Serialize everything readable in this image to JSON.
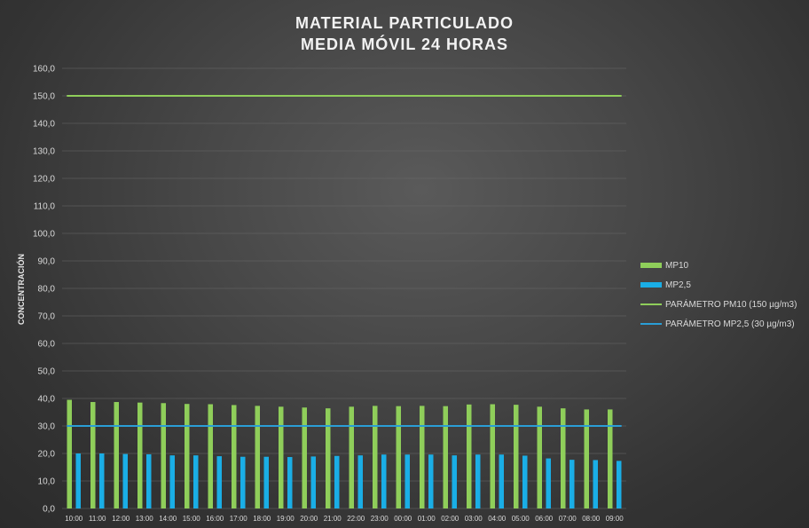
{
  "chart_data": {
    "type": "bar",
    "title": [
      "MATERIAL PARTICULADO",
      "MEDIA MÓVIL 24 HORAS"
    ],
    "ylabel": "CONCENTRACIÓN",
    "xlabel": "",
    "ylim": [
      0,
      160
    ],
    "y_ticks": [
      "0,0",
      "10,0",
      "20,0",
      "30,0",
      "40,0",
      "50,0",
      "60,0",
      "70,0",
      "80,0",
      "90,0",
      "100,0",
      "110,0",
      "120,0",
      "130,0",
      "140,0",
      "150,0",
      "160,0"
    ],
    "grid": true,
    "legend_position": "right",
    "categories": [
      "10:00",
      "11:00",
      "12:00",
      "13:00",
      "14:00",
      "15:00",
      "16:00",
      "17:00",
      "18:00",
      "19:00",
      "20:00",
      "21:00",
      "22:00",
      "23:00",
      "00:00",
      "01:00",
      "02:00",
      "03:00",
      "04:00",
      "05:00",
      "06:00",
      "07:00",
      "08:00",
      "09:00"
    ],
    "series": [
      {
        "name": "MP10",
        "kind": "bar",
        "color": "#8fce5a",
        "values": [
          39.5,
          38.7,
          38.7,
          38.5,
          38.3,
          38,
          37.9,
          37.6,
          37.3,
          37,
          36.7,
          36.4,
          37,
          37.3,
          37.2,
          37.3,
          37.2,
          37.8,
          37.9,
          37.7,
          37,
          36.4,
          36,
          36
        ]
      },
      {
        "name": "MP2,5",
        "kind": "bar",
        "color": "#1aaee6",
        "values": [
          20,
          20,
          19.8,
          19.7,
          19.3,
          19.3,
          19,
          18.8,
          18.8,
          18.7,
          18.9,
          19.1,
          19.3,
          19.6,
          19.6,
          19.6,
          19.3,
          19.6,
          19.6,
          19.2,
          18.2,
          17.7,
          17.6,
          17.3
        ]
      },
      {
        "name": "PARÁMETRO PM10 (150 µg/m3)",
        "kind": "line",
        "color": "#8fce5a",
        "value": 150
      },
      {
        "name": "PARÁMETRO MP2,5 (30 µg/m3)",
        "kind": "line",
        "color": "#2a9ed6",
        "value": 30
      }
    ]
  }
}
